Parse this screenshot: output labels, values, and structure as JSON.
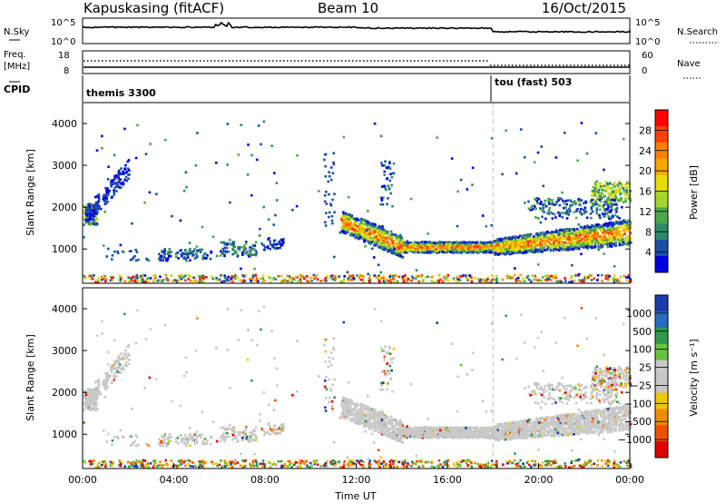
{
  "header": {
    "station": "Kapuskasing (fitACF)",
    "beam": "Beam 10",
    "date": "16/Oct/2015"
  },
  "panels": {
    "nsky": {
      "label": "N.Sky",
      "ticks": [
        "10^5",
        "10^0"
      ],
      "right_ticks": [
        "10^5",
        "10^0"
      ],
      "right_label": "N.Search"
    },
    "freq": {
      "label_top": "Freq.",
      "label_unit": "[MHz]",
      "ticks": [
        "18",
        "8"
      ],
      "right_ticks": [
        "60",
        "0"
      ],
      "right_label": "Nave"
    },
    "cpid": {
      "label": "CPID",
      "modes": [
        "themis 3300",
        "tou (fast) 503"
      ]
    }
  },
  "chart_data": [
    {
      "type": "heatmap",
      "name": "power",
      "ylabel": "Slant Range [km]",
      "ylim": [
        180,
        4500
      ],
      "yticks": [
        1000,
        2000,
        3000,
        4000
      ],
      "colorbar": {
        "label": "Power [dB]",
        "ticks": [
          "28",
          "24",
          "20",
          "16",
          "12",
          "8",
          "4"
        ],
        "colors": [
          "#ff0000",
          "#ff4000",
          "#ff8000",
          "#f5a800",
          "#e6dc00",
          "#a6d628",
          "#4ea84e",
          "#2e8b68",
          "#1c4fa8",
          "#0000e6"
        ]
      }
    },
    {
      "type": "heatmap",
      "name": "velocity",
      "ylabel": "Slant Range [km]",
      "xlabel": "Time UT",
      "ylim": [
        180,
        4500
      ],
      "yticks": [
        1000,
        2000,
        3000,
        4000
      ],
      "xticks": [
        "00:00",
        "04:00",
        "08:00",
        "12:00",
        "16:00",
        "20:00",
        "00:00"
      ],
      "colorbar": {
        "label": "Velocity [m s⁻¹]",
        "ticks": [
          "1000",
          "500",
          "100",
          "25",
          "−25",
          "−100",
          "−500",
          "−1000"
        ],
        "colors": [
          "#1c3ca8",
          "#2a6cc0",
          "#2e9c4c",
          "#66c43c",
          "#c8c8c8",
          "#c8c8c8",
          "#f0c800",
          "#f08c00",
          "#f05000",
          "#e00000"
        ]
      },
      "mode_change_hour": 18
    }
  ]
}
